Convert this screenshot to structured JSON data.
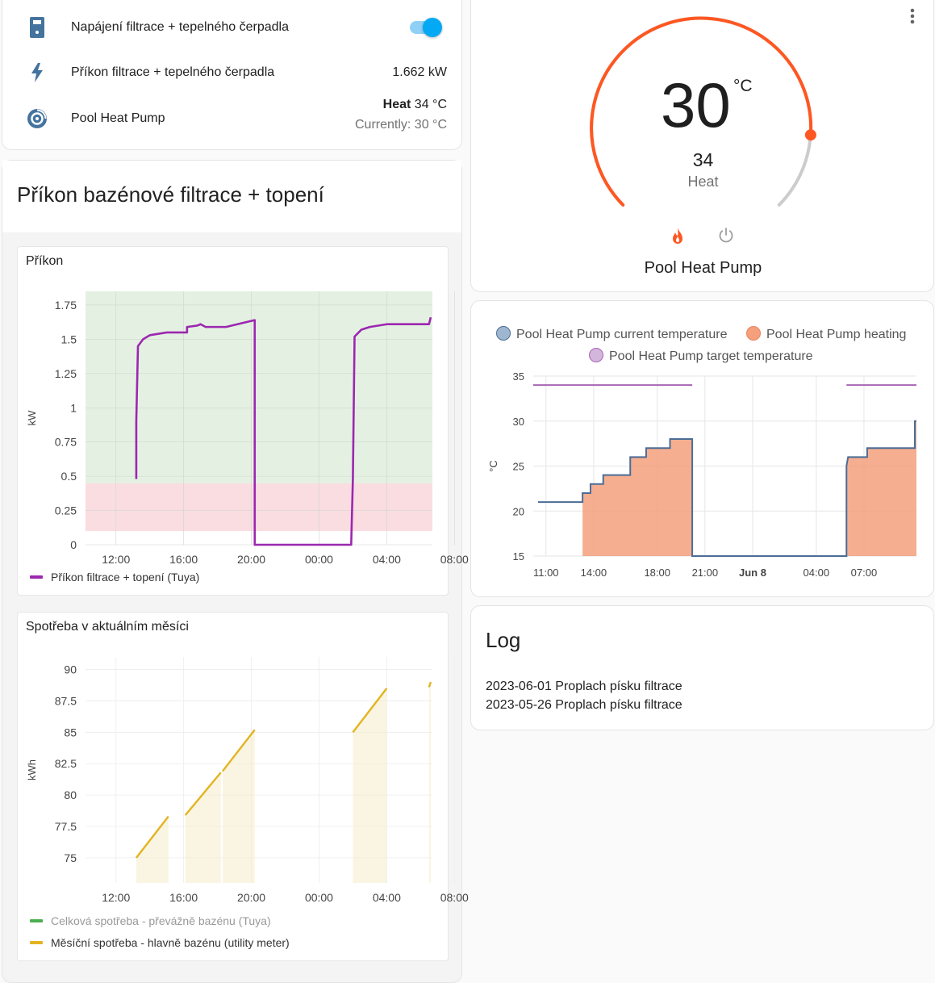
{
  "entities": {
    "power_switch": {
      "name": "Napájení filtrace + tepelného čerpadla",
      "state": true,
      "icon": "switch-icon"
    },
    "power_sensor": {
      "name": "Příkon filtrace + tepelného čerpadla",
      "value": "1.662 kW",
      "icon": "flash-icon"
    },
    "heat_pump": {
      "name": "Pool Heat Pump",
      "mode": "Heat",
      "target": "34 °C",
      "current_label": "Currently: 30 °C",
      "icon": "heat-pump-icon"
    }
  },
  "power_section": {
    "title": "Příkon bazénové filtrace + topení",
    "power_chart_title": "Příkon",
    "consumption_chart_title": "Spotřeba v aktuálním měsíci"
  },
  "thermostat": {
    "current_temp": "30",
    "unit": "°C",
    "target_temp": "34",
    "mode": "Heat",
    "name": "Pool Heat Pump",
    "accent": "#ff5722"
  },
  "log": {
    "title": "Log",
    "entries": [
      "2023-06-01 Proplach písku filtrace",
      "2023-05-26 Proplach písku filtrace"
    ]
  },
  "colors": {
    "power_series": "#9c27b0",
    "consumption_series": "#e3b420",
    "total_series": "#4caf50",
    "current_temp": "#4a6d96",
    "heating": "#f4a07d",
    "target_temp": "#a866b5",
    "toggle": "#03a9f4"
  },
  "chart_data": [
    {
      "type": "line",
      "title": "Příkon",
      "ylabel": "kW",
      "ylim": [
        0,
        1.85
      ],
      "yticks": [
        "0",
        "0.25",
        "0.5",
        "0.75",
        "1",
        "1.25",
        "1.5",
        "1.75"
      ],
      "xticks": [
        "12:00",
        "16:00",
        "20:00",
        "00:00",
        "04:00",
        "08:00"
      ],
      "bands": [
        {
          "from": 0.1,
          "to": 0.45,
          "color": "#fadde1"
        },
        {
          "from": 0.45,
          "to": 1.9,
          "color": "#e4f1e2"
        }
      ],
      "series": [
        {
          "name": "Příkon filtrace + topení (Tuya)",
          "points": [
            [
              13.2,
              0.48
            ],
            [
              13.2,
              0.9
            ],
            [
              13.3,
              1.45
            ],
            [
              13.6,
              1.5
            ],
            [
              14.0,
              1.53
            ],
            [
              15.0,
              1.55
            ],
            [
              16.2,
              1.55
            ],
            [
              16.2,
              1.59
            ],
            [
              16.8,
              1.6
            ],
            [
              17.0,
              1.61
            ],
            [
              17.3,
              1.59
            ],
            [
              18.5,
              1.59
            ],
            [
              20.2,
              1.64
            ],
            [
              20.2,
              0.0
            ],
            [
              25.9,
              0.0
            ],
            [
              26.0,
              0.48
            ],
            [
              26.1,
              1.52
            ],
            [
              26.5,
              1.57
            ],
            [
              27.0,
              1.59
            ],
            [
              28.0,
              1.61
            ],
            [
              30.5,
              1.61
            ],
            [
              30.6,
              1.66
            ]
          ]
        }
      ]
    },
    {
      "type": "line",
      "title": "Spotřeba v aktuálním měsíci",
      "ylabel": "kWh",
      "ylim": [
        73,
        91
      ],
      "yticks": [
        "75",
        "77.5",
        "80",
        "82.5",
        "85",
        "87.5",
        "90"
      ],
      "xticks": [
        "12:00",
        "16:00",
        "20:00",
        "00:00",
        "04:00",
        "08:00"
      ],
      "series": [
        {
          "name": "Celková spotřeba - převážně bazénu (Tuya)",
          "segments": []
        },
        {
          "name": "Měsíční spotřeba - hlavně bazénu (utility meter)",
          "segments": [
            [
              [
                13.2,
                75.0
              ],
              [
                15.1,
                78.3
              ]
            ],
            [
              [
                16.1,
                78.4
              ],
              [
                18.2,
                81.8
              ]
            ],
            [
              [
                18.3,
                81.9
              ],
              [
                20.2,
                85.2
              ]
            ],
            [
              [
                26.0,
                85.0
              ],
              [
                28.0,
                88.5
              ]
            ],
            [
              [
                30.5,
                88.6
              ],
              [
                30.6,
                89.0
              ]
            ]
          ]
        }
      ]
    },
    {
      "type": "area",
      "title": "",
      "ylabel": "°C",
      "ylim": [
        15,
        35
      ],
      "yticks": [
        "15",
        "20",
        "25",
        "30",
        "35"
      ],
      "xticks": [
        "11:00",
        "14:00",
        "18:00",
        "21:00",
        "Jun 8",
        "04:00",
        "07:00"
      ],
      "series": [
        {
          "name": "Pool Heat Pump current temperature",
          "points": [
            [
              10.5,
              21
            ],
            [
              13.3,
              21
            ],
            [
              13.3,
              22
            ],
            [
              13.8,
              22
            ],
            [
              13.8,
              23
            ],
            [
              14.6,
              23
            ],
            [
              14.6,
              24
            ],
            [
              16.3,
              24
            ],
            [
              16.3,
              26
            ],
            [
              17.3,
              26
            ],
            [
              17.3,
              27
            ],
            [
              18.8,
              27
            ],
            [
              18.8,
              28
            ],
            [
              20.2,
              28
            ],
            [
              20.2,
              15
            ],
            [
              29.9,
              15
            ],
            [
              29.9,
              25
            ],
            [
              30.0,
              26
            ],
            [
              31.2,
              26
            ],
            [
              31.2,
              27
            ],
            [
              34.2,
              27
            ],
            [
              34.2,
              30
            ],
            [
              34.3,
              30
            ]
          ]
        },
        {
          "name": "Pool Heat Pump heating",
          "ranges": [
            [
              13.3,
              20.2
            ],
            [
              29.9,
              34.3
            ]
          ]
        },
        {
          "name": "Pool Heat Pump target temperature",
          "segments": [
            [
              [
                10.2,
                34
              ],
              [
                20.2,
                34
              ]
            ],
            [
              [
                29.9,
                34
              ],
              [
                34.3,
                34
              ]
            ]
          ]
        }
      ]
    }
  ]
}
